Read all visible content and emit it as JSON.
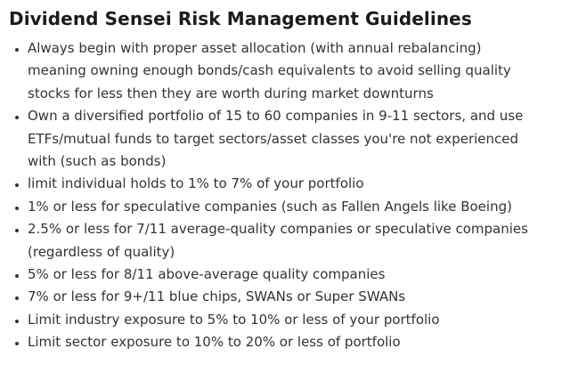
{
  "title": "Dividend Sensei Risk Management Guidelines",
  "colors": {
    "background": "#ffffff",
    "title_text": "#1b1b1b",
    "body_text": "#333333"
  },
  "guidelines": [
    {
      "lines": [
        "Always begin with proper asset allocation (with annual rebalancing)",
        "meaning owning enough bonds/cash equivalents to avoid selling quality",
        "stocks for less then they are worth during market downturns"
      ]
    },
    {
      "lines": [
        "Own a diversified portfolio of 15 to 60 companies in 9-11 sectors, and use",
        "ETFs/mutual funds to target sectors/asset classes you're not experienced",
        "with (such as bonds)"
      ]
    },
    {
      "lines": [
        "limit individual holds to 1% to 7% of your portfolio"
      ]
    },
    {
      "lines": [
        "1% or less for speculative companies (such as Fallen Angels like Boeing)"
      ]
    },
    {
      "lines": [
        "2.5% or less for 7/11 average-quality companies or speculative companies",
        "(regardless of quality)"
      ]
    },
    {
      "lines": [
        "5% or less for 8/11 above-average quality companies"
      ]
    },
    {
      "lines": [
        "7% or less for 9+/11 blue chips, SWANs or Super SWANs"
      ]
    },
    {
      "lines": [
        "Limit industry exposure to 5% to 10% or less of your portfolio"
      ]
    },
    {
      "lines": [
        "Limit sector exposure to 10% to 20% or less of portfolio"
      ]
    }
  ]
}
